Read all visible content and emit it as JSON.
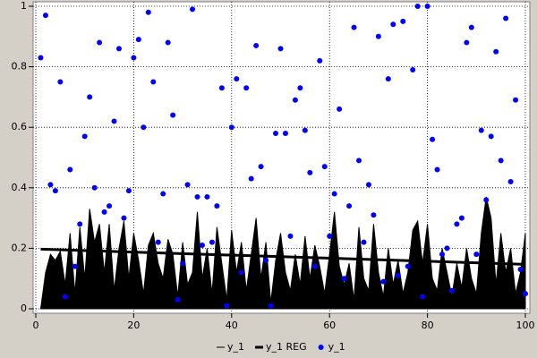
{
  "chart_data": {
    "type": "line",
    "xlim": [
      0,
      100
    ],
    "xticks": [
      0,
      20,
      40,
      60,
      80,
      100
    ],
    "ylim": [
      0,
      1
    ],
    "yticks": [
      0,
      0.2,
      0.4,
      0.6,
      0.8,
      1
    ],
    "grid": true,
    "legend": "bottom",
    "series": [
      {
        "name": "y_1",
        "style": "area",
        "color": "#000000",
        "x": [
          1,
          2,
          3,
          4,
          5,
          6,
          7,
          8,
          9,
          10,
          11,
          12,
          13,
          14,
          15,
          16,
          17,
          18,
          19,
          20,
          21,
          22,
          23,
          24,
          25,
          26,
          27,
          28,
          29,
          30,
          31,
          32,
          33,
          34,
          35,
          36,
          37,
          38,
          39,
          40,
          41,
          42,
          43,
          44,
          45,
          46,
          47,
          48,
          49,
          50,
          51,
          52,
          53,
          54,
          55,
          56,
          57,
          58,
          59,
          60,
          61,
          62,
          63,
          64,
          65,
          66,
          67,
          68,
          69,
          70,
          71,
          72,
          73,
          74,
          75,
          76,
          77,
          78,
          79,
          80,
          81,
          82,
          83,
          84,
          85,
          86,
          87,
          88,
          89,
          90,
          91,
          92,
          93,
          94,
          95,
          96,
          97,
          98,
          99,
          100
        ],
        "values": [
          0.0,
          0.12,
          0.18,
          0.16,
          0.19,
          0.08,
          0.25,
          0.05,
          0.27,
          0.1,
          0.33,
          0.22,
          0.28,
          0.12,
          0.28,
          0.06,
          0.2,
          0.29,
          0.1,
          0.25,
          0.16,
          0.05,
          0.21,
          0.25,
          0.15,
          0.1,
          0.23,
          0.18,
          0.04,
          0.22,
          0.08,
          0.12,
          0.32,
          0.1,
          0.2,
          0.05,
          0.27,
          0.15,
          0.03,
          0.26,
          0.12,
          0.22,
          0.06,
          0.18,
          0.3,
          0.1,
          0.22,
          0.02,
          0.16,
          0.25,
          0.12,
          0.06,
          0.18,
          0.08,
          0.24,
          0.1,
          0.21,
          0.14,
          0.05,
          0.18,
          0.32,
          0.14,
          0.08,
          0.15,
          0.03,
          0.27,
          0.1,
          0.06,
          0.28,
          0.12,
          0.04,
          0.2,
          0.08,
          0.16,
          0.05,
          0.12,
          0.26,
          0.29,
          0.15,
          0.28,
          0.1,
          0.06,
          0.2,
          0.12,
          0.04,
          0.15,
          0.07,
          0.2,
          0.1,
          0.05,
          0.25,
          0.37,
          0.3,
          0.08,
          0.25,
          0.12,
          0.2,
          0.05,
          0.12,
          0.25
        ]
      },
      {
        "name": "y_1 REG",
        "style": "line",
        "color": "#000000",
        "x": [
          1,
          100
        ],
        "values": [
          0.197,
          0.147
        ]
      },
      {
        "name": "y_1",
        "style": "points",
        "color": "#0000ff",
        "x": [
          1,
          2,
          3,
          4,
          5,
          6,
          7,
          8,
          9,
          10,
          11,
          12,
          13,
          14,
          15,
          16,
          17,
          18,
          19,
          20,
          21,
          22,
          23,
          24,
          25,
          26,
          27,
          28,
          29,
          30,
          31,
          32,
          33,
          34,
          35,
          36,
          37,
          38,
          39,
          40,
          41,
          42,
          43,
          44,
          45,
          46,
          47,
          48,
          49,
          50,
          51,
          52,
          53,
          54,
          55,
          56,
          57,
          58,
          59,
          60,
          61,
          62,
          63,
          64,
          65,
          66,
          67,
          68,
          69,
          70,
          71,
          72,
          73,
          74,
          75,
          76,
          77,
          78,
          79,
          80,
          81,
          82,
          83,
          84,
          85,
          86,
          87,
          88,
          89,
          90,
          91,
          92,
          93,
          94,
          95,
          96,
          97,
          98,
          99,
          100
        ],
        "values": [
          0.83,
          0.97,
          0.41,
          0.39,
          0.75,
          0.04,
          0.46,
          0.14,
          0.28,
          0.57,
          0.7,
          0.4,
          0.88,
          0.32,
          0.34,
          0.62,
          0.86,
          0.3,
          0.39,
          0.83,
          0.89,
          0.6,
          0.98,
          0.75,
          0.22,
          0.38,
          0.88,
          0.64,
          0.03,
          0.15,
          0.41,
          0.99,
          0.37,
          0.21,
          0.37,
          0.22,
          0.34,
          0.73,
          0.01,
          0.6,
          0.76,
          0.12,
          0.73,
          0.43,
          0.87,
          0.47,
          0.16,
          0.01,
          0.58,
          0.86,
          0.58,
          0.24,
          0.69,
          0.73,
          0.59,
          0.45,
          0.14,
          0.82,
          0.47,
          0.24,
          0.38,
          0.66,
          0.1,
          0.34,
          0.93,
          0.49,
          0.22,
          0.41,
          0.31,
          0.9,
          0.09,
          0.76,
          0.94,
          0.11,
          0.95,
          0.14,
          0.79,
          1.0,
          0.04,
          1.0,
          0.56,
          0.46,
          0.18,
          0.2,
          0.06,
          0.28,
          0.3,
          0.88,
          0.93,
          0.18,
          0.59,
          0.36,
          0.57,
          0.85,
          0.49,
          0.96,
          0.42,
          0.69,
          0.13,
          0.05
        ]
      }
    ]
  }
}
